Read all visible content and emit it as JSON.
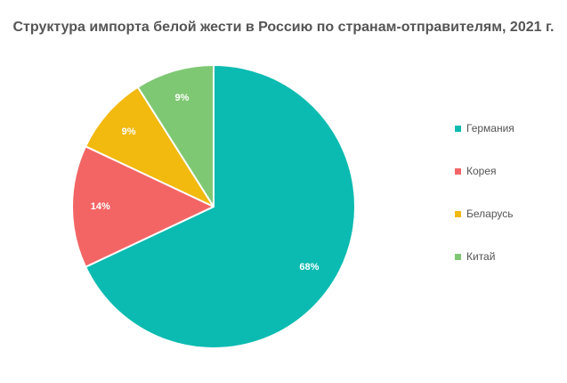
{
  "chart_data": {
    "type": "pie",
    "title": "Структура импорта белой жести в Россию по странам-отправителям, 2021 г.",
    "slices": [
      {
        "label": "Германия",
        "value": 68,
        "display": "68%",
        "color": "#0bbbb1"
      },
      {
        "label": "Корея",
        "value": 14,
        "display": "14%",
        "color": "#f36565"
      },
      {
        "label": "Беларусь",
        "value": 9,
        "display": "9%",
        "color": "#f2b90f"
      },
      {
        "label": "Китай",
        "value": 9,
        "display": "9%",
        "color": "#7fc873"
      }
    ],
    "start_angle_deg": 0,
    "direction": "clockwise",
    "legend_position": "right"
  }
}
